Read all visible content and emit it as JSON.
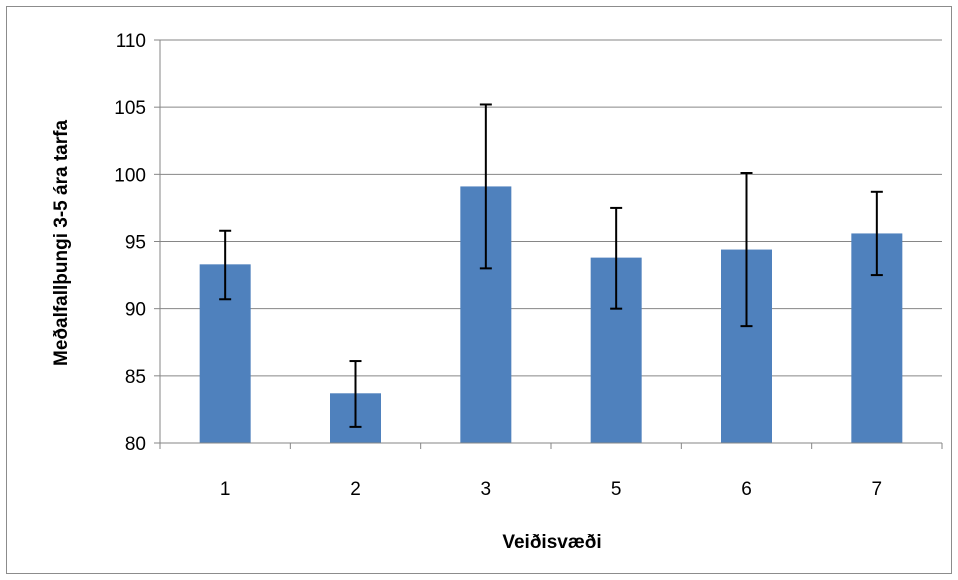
{
  "chart_data": {
    "type": "bar",
    "title": "",
    "xlabel": "Veiðisvæði",
    "ylabel": "Meðalfallþungi 3-5 ára tarfa",
    "categories": [
      "1",
      "2",
      "3",
      "5",
      "6",
      "7"
    ],
    "values": [
      93.3,
      83.7,
      99.1,
      93.8,
      94.4,
      95.6
    ],
    "error_low": [
      90.7,
      81.2,
      93.0,
      90.0,
      88.7,
      92.5
    ],
    "error_high": [
      95.8,
      86.1,
      105.2,
      97.5,
      100.1,
      98.7
    ],
    "ylim": [
      80,
      110
    ],
    "yticks": [
      "80",
      "85",
      "90",
      "95",
      "100",
      "105",
      "110"
    ],
    "grid": true,
    "legend": "none",
    "bar_color": "#4f81bd",
    "gridline_color": "#868686"
  }
}
